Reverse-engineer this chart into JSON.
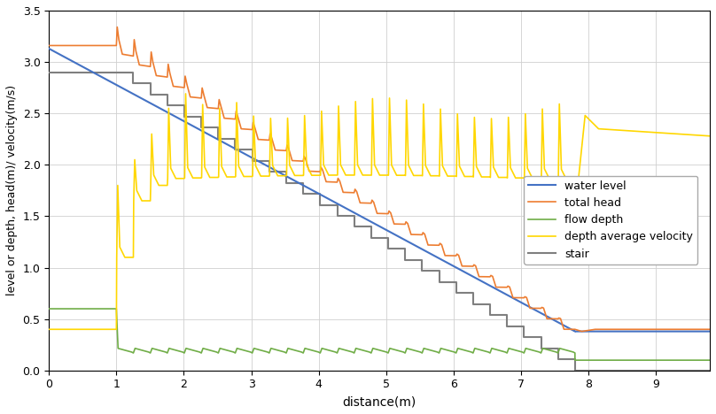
{
  "title": "",
  "xlabel": "distance(m)",
  "ylabel": "level or depth, head(m)/ velocity(m/s)",
  "xlim": [
    0,
    9.8
  ],
  "ylim": [
    0,
    3.5
  ],
  "xticks": [
    0.0,
    1.0,
    2.0,
    3.0,
    4.0,
    5.0,
    6.0,
    7.0,
    8.0,
    9.0
  ],
  "yticks": [
    0.0,
    0.5,
    1.0,
    1.5,
    2.0,
    2.5,
    3.0,
    3.5
  ],
  "colors": {
    "water_level": "#4472C4",
    "total_head": "#ED7D31",
    "flow_depth": "#70AD47",
    "velocity": "#FFD700",
    "stair": "#7F7F7F"
  },
  "legend_labels": [
    "water level",
    "total head",
    "flow depth",
    "depth average velocity",
    "stair"
  ],
  "stair_start_x": 1.0,
  "stair_start_y": 2.9,
  "stair_end_x": 7.8,
  "n_steps": 27,
  "water_level_y0": 3.13,
  "water_level_y1": 0.38,
  "water_level_flat_end": 9.8,
  "total_head_flat_y": 3.16,
  "total_head_end_y": 0.4,
  "flow_depth_flat_y": 0.6,
  "flow_depth_zigzag_base": 0.17,
  "flow_depth_zigzag_amp": 0.045,
  "flow_depth_end_y": 0.1,
  "velocity_flat_y": 0.4,
  "velocity_end_flat": 2.28
}
